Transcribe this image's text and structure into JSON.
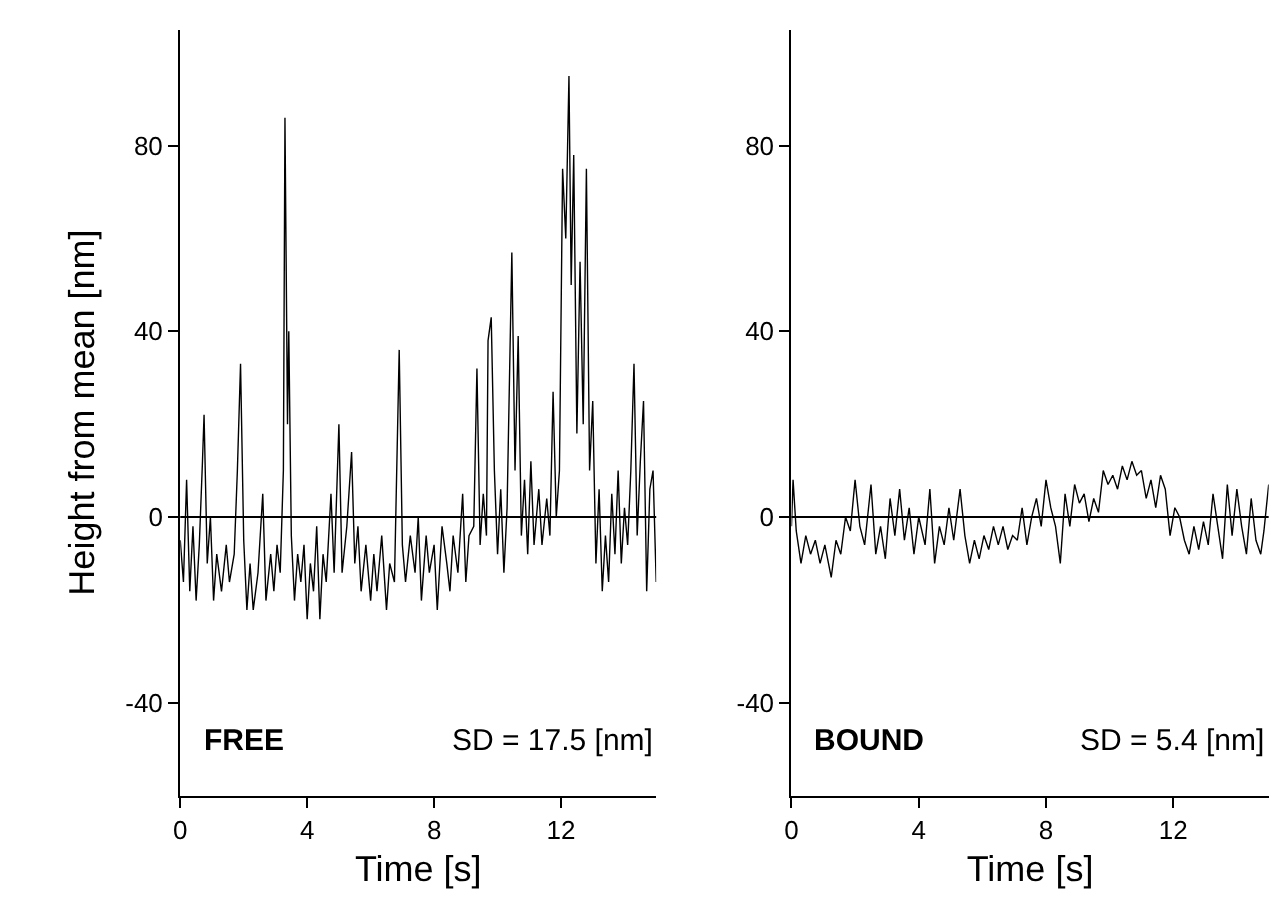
{
  "chart_data": [
    {
      "type": "line",
      "ylabel": "Height from mean [nm]",
      "xlabel": "Time [s]",
      "annotations": [
        "FREE",
        "SD = 17.5 [nm]"
      ],
      "xlim": [
        0,
        15
      ],
      "xticks": [
        0,
        4,
        8,
        12
      ],
      "ylim": [
        -60,
        105
      ],
      "yticks": [
        -40,
        0,
        40,
        80
      ],
      "marker": "none",
      "line_style": "solid",
      "ref_lines": [
        {
          "axis": "y",
          "value": 0,
          "color": "#000000"
        }
      ],
      "series": [
        {
          "color": "#000000",
          "x": [
            0,
            0.1,
            0.2,
            0.3,
            0.4,
            0.5,
            0.6,
            0.7,
            0.75,
            0.85,
            0.95,
            1.05,
            1.15,
            1.3,
            1.45,
            1.55,
            1.7,
            1.8,
            1.9,
            2.0,
            2.1,
            2.2,
            2.3,
            2.45,
            2.6,
            2.7,
            2.85,
            2.95,
            3.05,
            3.15,
            3.25,
            3.3,
            3.38,
            3.42,
            3.5,
            3.6,
            3.7,
            3.8,
            3.9,
            4.0,
            4.1,
            4.2,
            4.3,
            4.4,
            4.5,
            4.6,
            4.75,
            4.85,
            5.0,
            5.1,
            5.25,
            5.4,
            5.5,
            5.6,
            5.7,
            5.85,
            6.0,
            6.1,
            6.2,
            6.35,
            6.5,
            6.6,
            6.75,
            6.9,
            7.0,
            7.1,
            7.25,
            7.4,
            7.5,
            7.6,
            7.75,
            7.85,
            8.0,
            8.1,
            8.25,
            8.4,
            8.5,
            8.6,
            8.75,
            8.9,
            9.0,
            9.1,
            9.25,
            9.35,
            9.45,
            9.55,
            9.65,
            9.7,
            9.8,
            9.9,
            10.0,
            10.1,
            10.2,
            10.3,
            10.45,
            10.55,
            10.65,
            10.75,
            10.85,
            10.95,
            11.05,
            11.15,
            11.3,
            11.4,
            11.55,
            11.65,
            11.75,
            11.85,
            11.95,
            12.05,
            12.15,
            12.25,
            12.32,
            12.4,
            12.5,
            12.6,
            12.7,
            12.8,
            12.9,
            13.0,
            13.1,
            13.2,
            13.3,
            13.4,
            13.5,
            13.6,
            13.7,
            13.8,
            13.9,
            14.0,
            14.1,
            14.2,
            14.3,
            14.4,
            14.5,
            14.6,
            14.7,
            14.8,
            14.9,
            15.0
          ],
          "values": [
            -5,
            -14,
            8,
            -16,
            -2,
            -18,
            -6,
            12,
            22,
            -10,
            0,
            -18,
            -8,
            -16,
            -6,
            -14,
            -8,
            10,
            33,
            -5,
            -20,
            -10,
            -20,
            -12,
            5,
            -18,
            -8,
            -16,
            -6,
            -12,
            10,
            86,
            20,
            40,
            -4,
            -18,
            -8,
            -14,
            -6,
            -22,
            -10,
            -16,
            -2,
            -22,
            -8,
            -14,
            5,
            -12,
            20,
            -12,
            -2,
            14,
            -10,
            -2,
            -16,
            -6,
            -18,
            -8,
            -16,
            -4,
            -20,
            -10,
            -14,
            36,
            -6,
            -14,
            -4,
            -12,
            0,
            -18,
            -4,
            -12,
            -6,
            -20,
            -2,
            -10,
            -16,
            -4,
            -12,
            5,
            -14,
            -4,
            -2,
            32,
            -6,
            5,
            -4,
            38,
            43,
            10,
            -8,
            6,
            -12,
            2,
            57,
            10,
            39,
            -4,
            8,
            -8,
            12,
            -6,
            6,
            -6,
            4,
            -4,
            27,
            0,
            10,
            75,
            60,
            95,
            50,
            78,
            18,
            55,
            20,
            75,
            10,
            25,
            -10,
            6,
            -16,
            -4,
            -14,
            5,
            -8,
            10,
            -10,
            2,
            -6,
            10,
            33,
            -4,
            12,
            25,
            -16,
            6,
            10,
            -14
          ]
        }
      ]
    },
    {
      "type": "line",
      "xlabel": "Time [s]",
      "annotations": [
        "BOUND",
        "SD = 5.4 [nm]"
      ],
      "xlim": [
        0,
        15
      ],
      "xticks": [
        0,
        4,
        8,
        12
      ],
      "ylim": [
        -60,
        105
      ],
      "yticks": [
        -40,
        0,
        40,
        80
      ],
      "marker": "none",
      "line_style": "solid",
      "ref_lines": [
        {
          "axis": "y",
          "value": 0,
          "color": "#000000"
        }
      ],
      "series": [
        {
          "color": "#000000",
          "x": [
            0,
            0.05,
            0.15,
            0.3,
            0.45,
            0.6,
            0.75,
            0.9,
            1.05,
            1.25,
            1.4,
            1.55,
            1.7,
            1.85,
            2.0,
            2.15,
            2.3,
            2.5,
            2.65,
            2.8,
            2.95,
            3.1,
            3.25,
            3.4,
            3.55,
            3.7,
            3.85,
            4.0,
            4.2,
            4.35,
            4.5,
            4.65,
            4.8,
            4.95,
            5.1,
            5.3,
            5.45,
            5.6,
            5.75,
            5.9,
            6.05,
            6.2,
            6.35,
            6.5,
            6.65,
            6.8,
            6.95,
            7.1,
            7.25,
            7.4,
            7.55,
            7.7,
            7.85,
            8.0,
            8.15,
            8.3,
            8.45,
            8.6,
            8.75,
            8.9,
            9.05,
            9.2,
            9.35,
            9.5,
            9.65,
            9.8,
            9.95,
            10.1,
            10.25,
            10.4,
            10.55,
            10.7,
            10.85,
            11.0,
            11.15,
            11.3,
            11.45,
            11.6,
            11.75,
            11.9,
            12.05,
            12.2,
            12.35,
            12.5,
            12.65,
            12.8,
            12.95,
            13.1,
            13.25,
            13.4,
            13.55,
            13.7,
            13.85,
            14.0,
            14.15,
            14.3,
            14.45,
            14.6,
            14.75,
            14.85,
            15.0
          ],
          "values": [
            -2,
            8,
            -3,
            -10,
            -4,
            -8,
            -5,
            -10,
            -6,
            -13,
            -5,
            -8,
            0,
            -3,
            8,
            -2,
            -6,
            7,
            -8,
            -2,
            -9,
            4,
            -4,
            6,
            -5,
            2,
            -8,
            0,
            -6,
            6,
            -10,
            -2,
            -6,
            2,
            -5,
            6,
            -4,
            -10,
            -5,
            -9,
            -4,
            -7,
            -2,
            -6,
            -2,
            -7,
            -4,
            -5,
            2,
            -6,
            0,
            4,
            -2,
            8,
            2,
            -2,
            -10,
            5,
            -2,
            7,
            3,
            5,
            -1,
            4,
            1,
            10,
            7,
            9,
            6,
            11,
            8,
            12,
            9,
            10,
            4,
            8,
            2,
            9,
            6,
            -4,
            2,
            0,
            -5,
            -8,
            -2,
            -7,
            -1,
            -6,
            5,
            -2,
            -9,
            7,
            -4,
            6,
            -2,
            -8,
            4,
            -5,
            -8,
            -3,
            7
          ]
        }
      ]
    }
  ]
}
